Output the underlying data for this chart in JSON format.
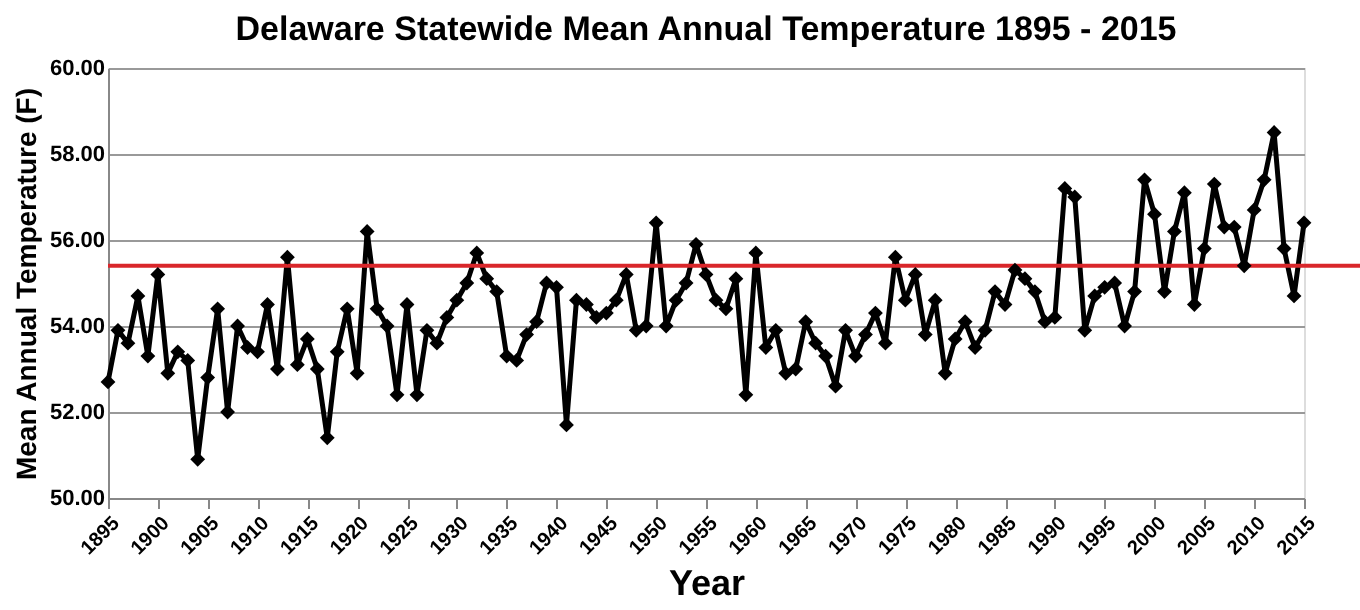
{
  "chart_data": {
    "type": "line",
    "title": "Delaware Statewide Mean Annual Temperature 1895 - 2015",
    "xlabel": "Year",
    "ylabel": "Mean Annual Temperature (F)",
    "x": [
      1895,
      1896,
      1897,
      1898,
      1899,
      1900,
      1901,
      1902,
      1903,
      1904,
      1905,
      1906,
      1907,
      1908,
      1909,
      1910,
      1911,
      1912,
      1913,
      1914,
      1915,
      1916,
      1917,
      1918,
      1919,
      1920,
      1921,
      1922,
      1923,
      1924,
      1925,
      1926,
      1927,
      1928,
      1929,
      1930,
      1931,
      1932,
      1933,
      1934,
      1935,
      1936,
      1937,
      1938,
      1939,
      1940,
      1941,
      1942,
      1943,
      1944,
      1945,
      1946,
      1947,
      1948,
      1949,
      1950,
      1951,
      1952,
      1953,
      1954,
      1955,
      1956,
      1957,
      1958,
      1959,
      1960,
      1961,
      1962,
      1963,
      1964,
      1965,
      1966,
      1967,
      1968,
      1969,
      1970,
      1971,
      1972,
      1973,
      1974,
      1975,
      1976,
      1977,
      1978,
      1979,
      1980,
      1981,
      1982,
      1983,
      1984,
      1985,
      1986,
      1987,
      1988,
      1989,
      1990,
      1991,
      1992,
      1993,
      1994,
      1995,
      1996,
      1997,
      1998,
      1999,
      2000,
      2001,
      2002,
      2003,
      2004,
      2005,
      2006,
      2007,
      2008,
      2009,
      2010,
      2011,
      2012,
      2013,
      2014,
      2015
    ],
    "series": [
      {
        "color": "#000000",
        "values": [
          52.7,
          53.9,
          53.6,
          54.7,
          53.3,
          55.2,
          52.9,
          53.4,
          53.2,
          50.9,
          52.8,
          54.4,
          52.0,
          54.0,
          53.5,
          53.4,
          54.5,
          53.0,
          55.6,
          53.1,
          53.7,
          53.0,
          51.4,
          53.4,
          54.4,
          52.9,
          56.2,
          54.4,
          54.0,
          52.4,
          54.5,
          52.4,
          53.9,
          53.6,
          54.2,
          54.6,
          55.0,
          55.7,
          55.1,
          54.8,
          53.3,
          53.2,
          53.8,
          54.1,
          55.0,
          54.9,
          51.7,
          54.6,
          54.5,
          54.2,
          54.3,
          54.6,
          55.2,
          53.9,
          54.0,
          56.4,
          54.0,
          54.6,
          55.0,
          55.9,
          55.2,
          54.6,
          54.4,
          55.1,
          52.4,
          55.7,
          53.5,
          53.9,
          52.9,
          53.0,
          54.1,
          53.6,
          53.3,
          52.6,
          53.9,
          53.3,
          53.8,
          54.3,
          53.6,
          55.6,
          54.6,
          55.2,
          53.8,
          54.6,
          52.9,
          53.7,
          54.1,
          53.5,
          53.9,
          54.8,
          54.5,
          55.3,
          55.1,
          54.8,
          54.1,
          54.2,
          57.2,
          57.0,
          53.9,
          54.7,
          54.9,
          55.0,
          54.0,
          54.8,
          57.4,
          56.6,
          54.8,
          56.2,
          57.1,
          54.5,
          55.8,
          57.3,
          56.3,
          56.3,
          55.4,
          56.7,
          57.4,
          58.5,
          55.8,
          54.7,
          56.4
        ]
      }
    ],
    "xlim": [
      1895,
      2015
    ],
    "xticks": [
      1895,
      1900,
      1905,
      1910,
      1915,
      1920,
      1925,
      1930,
      1935,
      1940,
      1945,
      1950,
      1955,
      1960,
      1965,
      1970,
      1975,
      1980,
      1985,
      1990,
      1995,
      2000,
      2005,
      2010,
      2015
    ],
    "ylim": [
      50,
      60
    ],
    "yticks": [
      {
        "value": 50,
        "label": "50.00"
      },
      {
        "value": 52,
        "label": "52.00"
      },
      {
        "value": 54,
        "label": "54.00"
      },
      {
        "value": 56,
        "label": "56.00"
      },
      {
        "value": 58,
        "label": "58.00"
      },
      {
        "value": 60,
        "label": "60.00"
      }
    ],
    "ref_lines": [
      {
        "axis": "y",
        "value": 55.4,
        "color": "#d9262a"
      }
    ],
    "grid": "y",
    "marker": "diamond",
    "line_style": "solid",
    "legend": false
  }
}
